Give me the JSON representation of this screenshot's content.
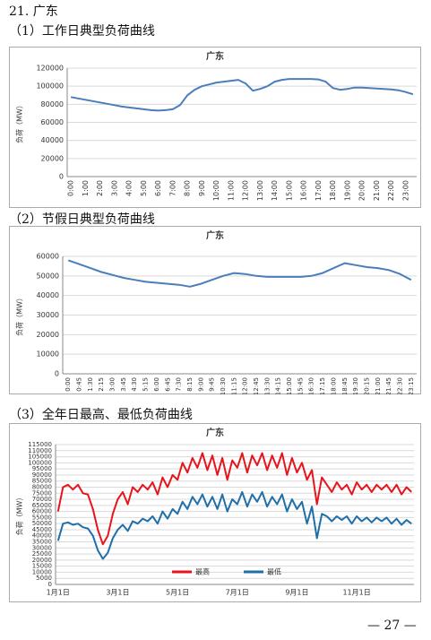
{
  "page": {
    "heading": "21. 广东",
    "captions": [
      "（1）工作日典型负荷曲线",
      "（2）节假日典型负荷曲线",
      "（3）全年日最高、最低负荷曲线"
    ],
    "footer": "— 27 —"
  },
  "chart_data": [
    {
      "type": "line",
      "title": "广东",
      "y_label": "负荷（MW）",
      "color": "#4a7ebb",
      "grid": true,
      "categories": [
        "0:00",
        null,
        "1:00",
        null,
        "2:00",
        null,
        "3:00",
        null,
        "4:00",
        null,
        "5:00",
        null,
        "6:00",
        null,
        "7:00",
        null,
        "8:00",
        null,
        "9:00",
        null,
        "10:00",
        null,
        "11:00",
        null,
        "12:00",
        null,
        "13:00",
        null,
        "14:00",
        null,
        "15:00",
        null,
        "16:00",
        null,
        "17:00",
        null,
        "18:00",
        null,
        "19:00",
        null,
        "20:00",
        null,
        "21:00",
        null,
        "22:00",
        null,
        "23:00",
        null
      ],
      "values": [
        88000,
        86500,
        85000,
        83500,
        82000,
        80500,
        79000,
        77500,
        76500,
        75500,
        74500,
        73500,
        73000,
        73500,
        74500,
        79000,
        90000,
        96000,
        100000,
        102000,
        104000,
        105000,
        106000,
        107000,
        103000,
        95000,
        97000,
        100000,
        105000,
        107000,
        108000,
        108000,
        108000,
        108000,
        107500,
        105000,
        98000,
        96000,
        97000,
        98500,
        98500,
        98000,
        97500,
        97000,
        96500,
        95500,
        93500,
        91000
      ],
      "ylim": [
        0,
        120000
      ],
      "yticks": [
        0,
        20000,
        40000,
        60000,
        80000,
        100000,
        120000
      ]
    },
    {
      "type": "line",
      "title": "广东",
      "y_label": "负荷（MW）",
      "color": "#4a7ebb",
      "grid": true,
      "categories": [
        "0:00",
        "0:45",
        "1:30",
        "2:15",
        "3:00",
        "3:45",
        "4:30",
        "5:15",
        "6:00",
        "6:45",
        "7:30",
        "8:15",
        "9:00",
        "9:45",
        "10:30",
        "11:15",
        "12:00",
        "12:45",
        "13:30",
        "14:15",
        "15:00",
        "15:45",
        "16:30",
        "17:15",
        "18:00",
        "18:45",
        "19:30",
        "20:15",
        "21:00",
        "21:45",
        "22:30",
        "23:15"
      ],
      "values": [
        58000,
        56000,
        54000,
        52000,
        50500,
        49000,
        48000,
        47000,
        46500,
        46000,
        45500,
        44500,
        46000,
        48000,
        50000,
        51500,
        51000,
        50000,
        49500,
        49500,
        49500,
        49500,
        50000,
        51500,
        54000,
        56500,
        55500,
        54500,
        54000,
        53000,
        51000,
        48000
      ],
      "ylim": [
        0,
        60000
      ],
      "yticks": [
        0,
        10000,
        20000,
        30000,
        40000,
        50000,
        60000
      ]
    },
    {
      "type": "line",
      "title": "广东",
      "y_label": "负荷（MW）",
      "grid": true,
      "categories": [
        "1月1日",
        null,
        null,
        null,
        null,
        null,
        null,
        null,
        null,
        null,
        null,
        null,
        "3月1日",
        null,
        null,
        null,
        null,
        null,
        null,
        null,
        null,
        null,
        null,
        null,
        "5月1日",
        null,
        null,
        null,
        null,
        null,
        null,
        null,
        null,
        null,
        null,
        null,
        "7月1日",
        null,
        null,
        null,
        null,
        null,
        null,
        null,
        null,
        null,
        null,
        null,
        "9月1日",
        null,
        null,
        null,
        null,
        null,
        null,
        null,
        null,
        null,
        null,
        null,
        "11月1日",
        null,
        null,
        null,
        null,
        null,
        null,
        null,
        null,
        null,
        null,
        null
      ],
      "series": [
        {
          "name": "最高",
          "color": "#e8141c",
          "values": [
            60000,
            80000,
            82000,
            78000,
            82000,
            75000,
            74000,
            62000,
            45000,
            33000,
            40000,
            58000,
            70000,
            76000,
            66000,
            80000,
            76000,
            82000,
            78000,
            84000,
            74000,
            88000,
            80000,
            90000,
            86000,
            100000,
            92000,
            104000,
            96000,
            108000,
            94000,
            106000,
            90000,
            104000,
            86000,
            102000,
            96000,
            108000,
            92000,
            106000,
            98000,
            108000,
            94000,
            106000,
            96000,
            108000,
            90000,
            104000,
            92000,
            100000,
            86000,
            94000,
            66000,
            88000,
            82000,
            76000,
            84000,
            78000,
            82000,
            74000,
            84000,
            78000,
            82000,
            76000,
            82000,
            78000,
            82000,
            76000,
            82000,
            74000,
            80000,
            76000
          ]
        },
        {
          "name": "最低",
          "color": "#1f6fa8",
          "values": [
            36000,
            50000,
            51000,
            49000,
            50000,
            47000,
            46000,
            40000,
            28000,
            21000,
            26000,
            38000,
            45000,
            49000,
            44000,
            52000,
            50000,
            54000,
            52000,
            56000,
            50000,
            60000,
            54000,
            62000,
            58000,
            68000,
            62000,
            72000,
            66000,
            74000,
            64000,
            72000,
            62000,
            74000,
            60000,
            70000,
            66000,
            76000,
            64000,
            74000,
            68000,
            76000,
            64000,
            72000,
            66000,
            74000,
            60000,
            70000,
            62000,
            68000,
            50000,
            64000,
            38000,
            58000,
            56000,
            52000,
            56000,
            53000,
            56000,
            50000,
            56000,
            52000,
            55000,
            51000,
            55000,
            52000,
            55000,
            50000,
            54000,
            49000,
            53000,
            50000
          ]
        }
      ],
      "ylim": [
        0,
        115000
      ],
      "yticks": [
        0,
        5000,
        10000,
        15000,
        20000,
        25000,
        30000,
        35000,
        40000,
        45000,
        50000,
        55000,
        60000,
        65000,
        70000,
        75000,
        80000,
        85000,
        90000,
        95000,
        100000,
        105000,
        110000,
        115000
      ]
    }
  ]
}
